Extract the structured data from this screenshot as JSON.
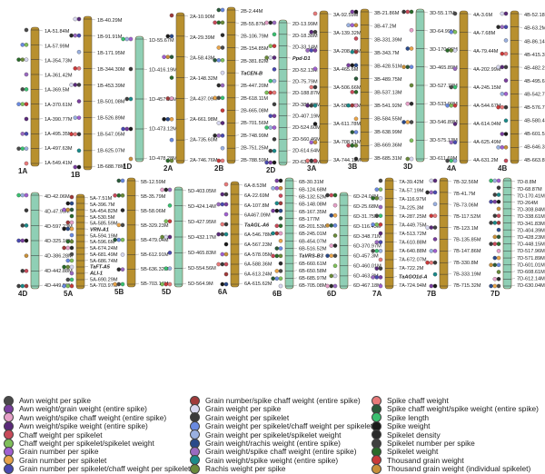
{
  "chromosomes": [
    {
      "name": "1A",
      "color": "#b8902e",
      "labels": [
        "1A-51.84M",
        "1A-57.99M",
        "1A-354.73M",
        "1A-361.42M",
        "1A-369.5M",
        "1A-370.61M",
        "1A-390.77M",
        "1A-495.35M",
        "1A-497.63M",
        "1A-549.41M"
      ]
    },
    {
      "name": "1B",
      "color": "#b8902e",
      "labels": [
        "1B-40.29M",
        "1B-91.91M",
        "1B-171.95M",
        "1B-344.30M",
        "1B-453.39M",
        "1B-501.08M",
        "1B-526.89M",
        "1B-547.05M",
        "1B-625.07M",
        "1B-688.78M"
      ]
    },
    {
      "name": "1D",
      "color": "#8fcfb5",
      "labels": [
        "1D-55.67M",
        "1D-416.19M",
        "1D-457.53M",
        "1D-473.12M",
        "1D-478.28M"
      ]
    },
    {
      "name": "2A",
      "color": "#b8902e",
      "labels": [
        "2A-10.90M",
        "2A-29.39M",
        "2A-58.43M",
        "2A-148.32M",
        "2A-437.09M",
        "2A-661.98M",
        "2A-735.60M",
        "2A-746.76M"
      ]
    },
    {
      "name": "2B",
      "color": "#b8902e",
      "labels": [
        "2B-2.44M",
        "2B-55.87M",
        "2B-106.79M",
        "2B-154.85M",
        "2B-381.82M",
        "TaCEN-B",
        "2B-447.20M",
        "2B-618.11M",
        "2B-665.08M",
        "2B-701.56M",
        "2B-748.99M",
        "2B-751.25M",
        "2B-788.59M"
      ]
    },
    {
      "name": "2D",
      "color": "#8fcfb5",
      "labels": [
        "2D-13.99M",
        "2D-18.38M",
        "2D-33.14M",
        "Ppd-D1",
        "2D-52.13M",
        "2D-75.79M",
        "2D-188.87M",
        "2D-380.26M",
        "2D-407.19M",
        "2D-524.60M",
        "2D-560.46M",
        "2D-614.64M",
        "2D-633.35M"
      ]
    },
    {
      "name": "3A",
      "color": "#b8902e",
      "labels": [
        "3A-92.59M",
        "3A-139.32M",
        "3A-208.25M",
        "3A-465.6M",
        "3A-506.66M",
        "3A-581.73M",
        "3A-611.78M",
        "3A-708.51M",
        "3A-744.11M"
      ]
    },
    {
      "name": "3B",
      "color": "#b8902e",
      "labels": [
        "3B-21.86M",
        "3B-47.2M",
        "3B-331.39M",
        "3B-343.7M",
        "3B-428.51M",
        "3B-489.75M",
        "3B-537.13M",
        "3B-541.92M",
        "3B-584.55M",
        "3B-638.99M",
        "3B-669.36M",
        "3B-685.31M"
      ]
    },
    {
      "name": "3D",
      "color": "#8fcfb5",
      "labels": [
        "3D-55.17M",
        "3D-64.99M",
        "3D-170.96M",
        "3D-465.89M",
        "3D-527.73M",
        "3D-533.99M",
        "3D-546.89M",
        "3D-575.13M",
        "3D-611.69M"
      ]
    },
    {
      "name": "4A",
      "color": "#b8902e",
      "labels": [
        "4A-3.6M",
        "4A-7.68M",
        "4A-79.44M",
        "4A-202.99M",
        "4A-245.15M",
        "4A-544.67M",
        "4A-614.04M",
        "4A-625.49M",
        "4A-631.2M"
      ]
    },
    {
      "name": "4B",
      "color": "#b8902e",
      "labels": [
        "4B-52.18M",
        "4B-63.2M",
        "4B-86.14M",
        "4B-415.39M",
        "4B-482.22M",
        "4B-495.65M",
        "4B-542.71M",
        "4B-576.78M",
        "4B-580.42M",
        "4B-601.55M",
        "4B-646.37M",
        "4B-663.81M"
      ]
    },
    {
      "name": "4D",
      "color": "#8fcfb5",
      "labels": [
        "4D-42.06M",
        "4D-47.95M",
        "4D-597.23M",
        "4D-325.16M",
        "4D-386.28M",
        "4D-442.88M",
        "4D-449.99M"
      ]
    },
    {
      "name": "5A",
      "color": "#b8902e",
      "labels": [
        "5A-7.51M",
        "5A-396.7M",
        "5A-454.82M",
        "5A-530.5M",
        "5A-585.59M",
        "VRN-A1",
        "5A-594.19M",
        "5A-596.6M",
        "5A-674.24M",
        "5A-681.49M",
        "5A-686.74M",
        "TaFT-A5",
        "ALI-1",
        "5A-690.29M",
        "5A-703.97M"
      ]
    },
    {
      "name": "5B",
      "color": "#b8902e",
      "labels": [
        "5B-12.59M",
        "5B-35.79M",
        "5B-58.06M",
        "5B-329.23M",
        "5B-479.04M",
        "5B-612.91M",
        "5B-636.32M",
        "5B-703.14M"
      ]
    },
    {
      "name": "5D",
      "color": "#8fcfb5",
      "labels": [
        "5D-403.05M",
        "5D-424.14M",
        "5D-427.95M",
        "5D-432.17M",
        "5D-465.83M",
        "5D-554.56M",
        "5D-564.9M"
      ]
    },
    {
      "name": "6A",
      "color": "#b8902e",
      "labels": [
        "6A-8.53M",
        "6A-22.69M",
        "6A-107.8M",
        "6A467.09M",
        "TaAGL-A6",
        "6A-546.78M",
        "6A-567.23M",
        "6A-578.05M",
        "6A-588.36M",
        "6A-613.24M",
        "6A-615.62M"
      ]
    },
    {
      "name": "6B",
      "color": "#8fcfb5",
      "labels": [
        "6B-30.31M",
        "6B-124.68M",
        "6B-132.52M",
        "6B-148.08M",
        "6B-167.35M",
        "6B-177M",
        "6B-201.53M",
        "6B-245.01M",
        "6B-454.07M",
        "6B-516.52M",
        "TaVRS-B3",
        "6B-660.61M",
        "6B-650.58M",
        "6B-685.97M",
        "6B-705.08M"
      ]
    },
    {
      "name": "6D",
      "color": "#8fcfb5",
      "labels": [
        "6D-24.04M",
        "6D-25.68M",
        "6D-31.75M",
        "6D-116.43M",
        "6D-348.71M",
        "6D-370.97M",
        "6D-457.3M",
        "6D-460.01M",
        "6D-463.2M",
        "6D-467.18M"
      ]
    },
    {
      "name": "7A",
      "color": "#b8902e",
      "labels": [
        "7A-39.42M",
        "7A-57.19M",
        "7A-116.97M",
        "7A-225.3M",
        "7A-287.25M",
        "7A-449.75M",
        "7A-513.72M",
        "7A-610.88M",
        "7A-640.88M",
        "7A-672.07M",
        "7A-722.2M",
        "TaAGO1d-A",
        "7A-724.94M"
      ]
    },
    {
      "name": "7B",
      "color": "#b8902e",
      "labels": [
        "7B-32.56M",
        "7B-41.7M",
        "7B-73.06M",
        "7B-117.52M",
        "7B-123.1M",
        "7B-135.85M",
        "7B-147.86M",
        "7B-330.8M",
        "7B-333.19M",
        "7B-715.32M"
      ]
    },
    {
      "name": "7D",
      "color": "#8fcfb5",
      "labels": [
        "7D-8.8M",
        "7D-68.87M",
        "7D-170.41M",
        "7D-264M",
        "7D-308.84M",
        "7D-338.61M",
        "7D-341.83M",
        "7D-404.39M",
        "7D-428.23M",
        "7D-448.15M",
        "7D-517.96M",
        "7D-571.89M",
        "7D-601.01M",
        "7D-608.61M",
        "7D-612.14M",
        "7D-630.04M"
      ]
    }
  ],
  "legend": [
    {
      "label": "Awn weight per spike",
      "color": "#4a4a4a"
    },
    {
      "label": "Awn weight/grain weight (entire spike)",
      "color": "#7a3f9e"
    },
    {
      "label": "Awn weight/spike chaff weight (entire spike)",
      "color": "#e6a0c8"
    },
    {
      "label": "Awn weight/spike weight (entire spike)",
      "color": "#5a2a7a"
    },
    {
      "label": "Chaff weight per spikelet",
      "color": "#c84a5a"
    },
    {
      "label": "Chaff weight per spikelet/spikelet weight",
      "color": "#7fbf5a"
    },
    {
      "label": "Grain number per spike",
      "color": "#a060d0"
    },
    {
      "label": "Grain number per spikelet",
      "color": "#e8a44a"
    },
    {
      "label": "Grain number per spikelet/chaff weight per spikelet",
      "color": "#4a4ab0"
    },
    {
      "label": "Grain number/spike chaff weight (entire spike)",
      "color": "#a03a3a"
    },
    {
      "label": "Grain weight per spike",
      "color": "#d8d8f0"
    },
    {
      "label": "Grain weight per spikelet",
      "color": "#3a3a3a"
    },
    {
      "label": "Grain weight per spikelet/chaff weight per spikelet",
      "color": "#6a8ae0"
    },
    {
      "label": "Grain weight per spikelet/spikelet weight",
      "color": "#9ab0e0"
    },
    {
      "label": "Grain weight/rachis weight (entire spike)",
      "color": "#2a4a8a"
    },
    {
      "label": "Grain weight/spike chaff weight (entire spike)",
      "color": "#9a6ac0"
    },
    {
      "label": "Grain weight/spike weight (entire spike)",
      "color": "#1a8a8a"
    },
    {
      "label": "Rachis weight per spike",
      "color": "#6a8a3a"
    },
    {
      "label": "Spike chaff weight",
      "color": "#e87a7a"
    },
    {
      "label": "Spike chaff weight/spike weight (entire spike)",
      "color": "#2a5a3a"
    },
    {
      "label": "Spike length",
      "color": "#3ac070"
    },
    {
      "label": "Spike weight",
      "color": "#1a1a1a"
    },
    {
      "label": "Spikelet density",
      "color": "#2a2a2a"
    },
    {
      "label": "Spikelet number per spike",
      "color": "#404040"
    },
    {
      "label": "Spikelet weight",
      "color": "#2a6a2a"
    },
    {
      "label": "Thousand grain weight",
      "color": "#c83a3a"
    },
    {
      "label": "Thousand grain weight (individual spikelet)",
      "color": "#c8903a"
    }
  ]
}
